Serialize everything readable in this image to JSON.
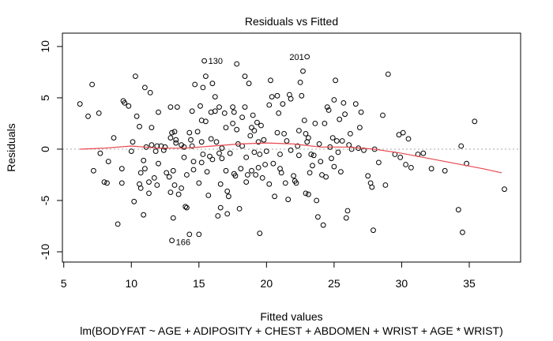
{
  "chart_data": {
    "type": "scatter",
    "title": "Residuals vs Fitted",
    "xlabel": "Fitted values",
    "subtitle": "lm(BODYFAT ~ AGE + ADIPOSITY + CHEST + ABDOMEN + WRIST + AGE * WRIST)",
    "ylabel": "Residuals",
    "xlim": [
      4.9,
      38.8
    ],
    "ylim": [
      -11.0,
      11.3
    ],
    "xticks": [
      5,
      10,
      15,
      20,
      25,
      30,
      35
    ],
    "yticks": [
      -10,
      -5,
      0,
      5,
      10
    ],
    "grid": false,
    "reference_line": {
      "y": 0,
      "style": "dotted",
      "color": "#aaaaaa"
    },
    "smooth_color": "#e8474f",
    "point_color": "#000000",
    "labeled_points": [
      {
        "label": "130",
        "x": 15.4,
        "y": 8.6
      },
      {
        "label": "201",
        "x": 23.0,
        "y": 9.0
      },
      {
        "label": "166",
        "x": 13.0,
        "y": -8.9
      }
    ],
    "smooth": [
      {
        "x": 6.2,
        "y": 0.0
      },
      {
        "x": 8.0,
        "y": 0.1
      },
      {
        "x": 10.0,
        "y": 0.3
      },
      {
        "x": 12.0,
        "y": 0.1
      },
      {
        "x": 14.0,
        "y": 0.1
      },
      {
        "x": 16.0,
        "y": 0.3
      },
      {
        "x": 18.0,
        "y": 0.5
      },
      {
        "x": 20.0,
        "y": 0.6
      },
      {
        "x": 22.0,
        "y": 0.5
      },
      {
        "x": 24.0,
        "y": 0.2
      },
      {
        "x": 26.0,
        "y": 0.2
      },
      {
        "x": 28.0,
        "y": 0.0
      },
      {
        "x": 30.0,
        "y": -0.4
      },
      {
        "x": 32.0,
        "y": -0.9
      },
      {
        "x": 34.0,
        "y": -1.4
      },
      {
        "x": 36.0,
        "y": -1.9
      },
      {
        "x": 37.4,
        "y": -2.3
      }
    ],
    "points": [
      [
        6.2,
        4.4
      ],
      [
        6.8,
        3.2
      ],
      [
        7.1,
        6.3
      ],
      [
        7.2,
        -2.1
      ],
      [
        7.6,
        3.5
      ],
      [
        7.7,
        -0.4
      ],
      [
        8.0,
        -3.2
      ],
      [
        8.2,
        -3.3
      ],
      [
        8.3,
        -1.2
      ],
      [
        8.7,
        1.1
      ],
      [
        9.0,
        -7.3
      ],
      [
        9.3,
        -3.3
      ],
      [
        9.3,
        -1.9
      ],
      [
        9.4,
        4.7
      ],
      [
        9.5,
        4.5
      ],
      [
        9.8,
        4.2
      ],
      [
        10.0,
        -0.2
      ],
      [
        10.1,
        0.7
      ],
      [
        10.2,
        -5.1
      ],
      [
        10.3,
        7.1
      ],
      [
        10.4,
        3.2
      ],
      [
        10.6,
        2.2
      ],
      [
        10.6,
        -3.4
      ],
      [
        10.7,
        -2.3
      ],
      [
        10.7,
        -3.8
      ],
      [
        10.9,
        -1.1
      ],
      [
        10.9,
        -6.4
      ],
      [
        11.0,
        6.0
      ],
      [
        11.0,
        -1.9
      ],
      [
        11.1,
        0.2
      ],
      [
        11.3,
        -4.3
      ],
      [
        11.3,
        -3.2
      ],
      [
        11.4,
        5.5
      ],
      [
        11.5,
        0.4
      ],
      [
        11.5,
        2.1
      ],
      [
        11.7,
        -2.8
      ],
      [
        11.8,
        -0.2
      ],
      [
        11.9,
        -3.5
      ],
      [
        11.9,
        0.3
      ],
      [
        12.0,
        3.6
      ],
      [
        12.0,
        -1.4
      ],
      [
        12.2,
        0.3
      ],
      [
        12.4,
        -0.1
      ],
      [
        12.5,
        0.2
      ],
      [
        12.6,
        -2.3
      ],
      [
        12.8,
        -2.7
      ],
      [
        12.9,
        4.1
      ],
      [
        12.9,
        1.1
      ],
      [
        12.9,
        -4.2
      ],
      [
        13.0,
        -8.9
      ],
      [
        13.0,
        1.6
      ],
      [
        13.1,
        -6.7
      ],
      [
        13.1,
        -2.1
      ],
      [
        13.2,
        1.7
      ],
      [
        13.2,
        -3.5
      ],
      [
        13.3,
        0.9
      ],
      [
        13.3,
        0.6
      ],
      [
        13.4,
        4.1
      ],
      [
        13.5,
        -4.4
      ],
      [
        13.7,
        0.4
      ],
      [
        13.7,
        -3.8
      ],
      [
        13.9,
        -0.8
      ],
      [
        13.9,
        0.2
      ],
      [
        14.0,
        -5.6
      ],
      [
        14.1,
        -2.5
      ],
      [
        14.1,
        -5.7
      ],
      [
        14.3,
        1.6
      ],
      [
        14.3,
        -8.3
      ],
      [
        14.4,
        0.9
      ],
      [
        14.5,
        3.7
      ],
      [
        14.5,
        0.3
      ],
      [
        14.6,
        -2.0
      ],
      [
        14.6,
        -1.2
      ],
      [
        14.7,
        6.3
      ],
      [
        14.9,
        1.7
      ],
      [
        15.0,
        -3.3
      ],
      [
        15.0,
        -8.3
      ],
      [
        15.1,
        4.2
      ],
      [
        15.2,
        -1.3
      ],
      [
        15.2,
        2.8
      ],
      [
        15.2,
        0.7
      ],
      [
        15.3,
        -0.5
      ],
      [
        15.3,
        6.0
      ],
      [
        15.4,
        8.6
      ],
      [
        15.5,
        7.1
      ],
      [
        15.5,
        2.7
      ],
      [
        15.6,
        -2.2
      ],
      [
        15.7,
        -4.5
      ],
      [
        15.8,
        -0.7
      ],
      [
        15.9,
        3.6
      ],
      [
        15.9,
        1.0
      ],
      [
        16.0,
        6.4
      ],
      [
        16.0,
        -1.0
      ],
      [
        16.2,
        3.7
      ],
      [
        16.2,
        5.1
      ],
      [
        16.3,
        0.7
      ],
      [
        16.4,
        -6.5
      ],
      [
        16.5,
        -0.4
      ],
      [
        16.5,
        4.1
      ],
      [
        16.6,
        -3.4
      ],
      [
        16.6,
        -5.7
      ],
      [
        16.7,
        -0.9
      ],
      [
        16.7,
        0.1
      ],
      [
        16.9,
        3.5
      ],
      [
        17.0,
        2.1
      ],
      [
        17.0,
        -2.1
      ],
      [
        17.1,
        -4.1
      ],
      [
        17.1,
        -6.3
      ],
      [
        17.2,
        -4.6
      ],
      [
        17.3,
        -0.4
      ],
      [
        17.5,
        4.1
      ],
      [
        17.5,
        2.5
      ],
      [
        17.6,
        3.6
      ],
      [
        17.6,
        -2.4
      ],
      [
        17.7,
        -2.6
      ],
      [
        17.8,
        8.3
      ],
      [
        17.8,
        1.9
      ],
      [
        17.9,
        0.5
      ],
      [
        18.0,
        -5.8
      ],
      [
        18.1,
        -1.9
      ],
      [
        18.2,
        3.1
      ],
      [
        18.2,
        0.3
      ],
      [
        18.4,
        7.1
      ],
      [
        18.4,
        4.1
      ],
      [
        18.5,
        -0.8
      ],
      [
        18.5,
        -3.2
      ],
      [
        18.6,
        -2.5
      ],
      [
        18.7,
        6.4
      ],
      [
        18.8,
        1.3
      ],
      [
        18.9,
        2.1
      ],
      [
        18.9,
        -2.1
      ],
      [
        19.0,
        3.3
      ],
      [
        19.1,
        -0.3
      ],
      [
        19.1,
        1.8
      ],
      [
        19.2,
        -2.5
      ],
      [
        19.3,
        2.6
      ],
      [
        19.4,
        -1.8
      ],
      [
        19.4,
        0.7
      ],
      [
        19.5,
        -0.5
      ],
      [
        19.5,
        -8.2
      ],
      [
        19.6,
        2.3
      ],
      [
        19.7,
        -2.8
      ],
      [
        19.8,
        0.9
      ],
      [
        19.9,
        -1.5
      ],
      [
        20.0,
        -0.2
      ],
      [
        20.2,
        4.3
      ],
      [
        20.2,
        -3.4
      ],
      [
        20.3,
        6.7
      ],
      [
        20.4,
        5.1
      ],
      [
        20.5,
        -1.4
      ],
      [
        20.6,
        -4.6
      ],
      [
        20.8,
        1.6
      ],
      [
        20.8,
        5.2
      ],
      [
        20.9,
        3.5
      ],
      [
        21.0,
        -0.5
      ],
      [
        21.0,
        -1.9
      ],
      [
        21.1,
        -2.3
      ],
      [
        21.2,
        4.4
      ],
      [
        21.3,
        1.5
      ],
      [
        21.4,
        -3.3
      ],
      [
        21.5,
        0.8
      ],
      [
        21.6,
        -4.9
      ],
      [
        21.7,
        5.3
      ],
      [
        21.8,
        4.9
      ],
      [
        21.8,
        -0.1
      ],
      [
        22.0,
        -2.6
      ],
      [
        22.1,
        -3.1
      ],
      [
        22.2,
        -3.3
      ],
      [
        22.3,
        0.3
      ],
      [
        22.4,
        1.8
      ],
      [
        22.4,
        -0.6
      ],
      [
        22.5,
        6.5
      ],
      [
        22.6,
        5.2
      ],
      [
        22.7,
        7.6
      ],
      [
        22.8,
        2.8
      ],
      [
        22.9,
        -4.3
      ],
      [
        22.9,
        1.5
      ],
      [
        23.0,
        9.0
      ],
      [
        23.0,
        0.7
      ],
      [
        23.1,
        1.1
      ],
      [
        23.1,
        -4.4
      ],
      [
        23.2,
        -2.3
      ],
      [
        23.3,
        -0.5
      ],
      [
        23.4,
        -1.6
      ],
      [
        23.5,
        -0.6
      ],
      [
        23.6,
        2.5
      ],
      [
        23.7,
        -5.0
      ],
      [
        23.8,
        -6.6
      ],
      [
        23.9,
        0.5
      ],
      [
        24.0,
        -1.2
      ],
      [
        24.1,
        -2.5
      ],
      [
        24.2,
        -7.4
      ],
      [
        24.3,
        2.5
      ],
      [
        24.4,
        -2.7
      ],
      [
        24.5,
        4.1
      ],
      [
        24.6,
        3.8
      ],
      [
        24.7,
        0.2
      ],
      [
        24.8,
        -0.9
      ],
      [
        24.9,
        1.1
      ],
      [
        25.0,
        4.8
      ],
      [
        25.0,
        -1.7
      ],
      [
        25.1,
        6.7
      ],
      [
        25.2,
        0.8
      ],
      [
        25.3,
        -0.3
      ],
      [
        25.4,
        2.9
      ],
      [
        25.5,
        -2.2
      ],
      [
        25.6,
        0.8
      ],
      [
        25.7,
        4.5
      ],
      [
        25.8,
        3.4
      ],
      [
        25.9,
        -6.7
      ],
      [
        26.0,
        -6.0
      ],
      [
        26.1,
        0.4
      ],
      [
        26.2,
        1.5
      ],
      [
        26.3,
        0.0
      ],
      [
        26.6,
        4.4
      ],
      [
        26.8,
        0.1
      ],
      [
        26.9,
        2.1
      ],
      [
        27.0,
        3.6
      ],
      [
        27.2,
        -0.1
      ],
      [
        27.5,
        -2.6
      ],
      [
        27.7,
        -3.3
      ],
      [
        27.8,
        -3.7
      ],
      [
        27.9,
        -7.9
      ],
      [
        28.0,
        0.0
      ],
      [
        28.3,
        -1.3
      ],
      [
        28.6,
        3.3
      ],
      [
        28.8,
        -3.5
      ],
      [
        29.0,
        7.3
      ],
      [
        29.5,
        -0.5
      ],
      [
        29.8,
        1.4
      ],
      [
        29.9,
        -0.8
      ],
      [
        30.1,
        1.6
      ],
      [
        30.3,
        -1.5
      ],
      [
        30.5,
        1.0
      ],
      [
        30.7,
        -1.8
      ],
      [
        31.2,
        -0.5
      ],
      [
        31.6,
        -0.4
      ],
      [
        32.2,
        -1.9
      ],
      [
        33.2,
        -2.1
      ],
      [
        34.2,
        -5.9
      ],
      [
        34.4,
        0.3
      ],
      [
        34.5,
        -8.1
      ],
      [
        34.8,
        -1.4
      ],
      [
        35.4,
        2.7
      ],
      [
        37.6,
        -3.9
      ]
    ]
  }
}
